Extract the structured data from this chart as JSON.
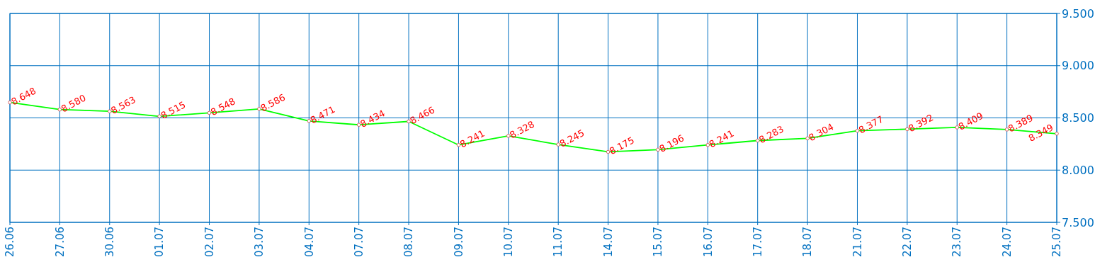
{
  "chart_data": {
    "type": "line",
    "categories": [
      "26.06",
      "27.06",
      "30.06",
      "01.07",
      "02.07",
      "03.07",
      "04.07",
      "07.07",
      "08.07",
      "09.07",
      "10.07",
      "11.07",
      "14.07",
      "15.07",
      "16.07",
      "17.07",
      "18.07",
      "21.07",
      "22.07",
      "23.07",
      "24.07",
      "25.07"
    ],
    "series": [
      {
        "color": "#00ff00",
        "values": [
          8.648,
          8.58,
          8.563,
          8.515,
          8.548,
          8.586,
          8.471,
          8.434,
          8.466,
          8.241,
          8.328,
          8.245,
          8.175,
          8.196,
          8.241,
          8.283,
          8.304,
          8.377,
          8.392,
          8.409,
          8.389,
          8.349
        ],
        "value_labels": [
          "8.648",
          "8.580",
          "8.563",
          "8.515",
          "8.548",
          "8.586",
          "8.471",
          "8.434",
          "8.466",
          "8.241",
          "8.328",
          "8.245",
          "8.175",
          "8.196",
          "8.241",
          "8.283",
          "8.304",
          "8.377",
          "8.392",
          "8.409",
          "8.389",
          "8.349"
        ]
      }
    ],
    "ylim": [
      7.5,
      9.5
    ],
    "yticks": [
      {
        "value": 7.5,
        "label": "7.500"
      },
      {
        "value": 8,
        "label": "8.000"
      },
      {
        "value": 8.5,
        "label": "8.500"
      },
      {
        "value": 9,
        "label": "9.000"
      },
      {
        "value": 9.5,
        "label": "9.500"
      }
    ],
    "grid": true,
    "marker": "circle",
    "line_style": "solid"
  }
}
